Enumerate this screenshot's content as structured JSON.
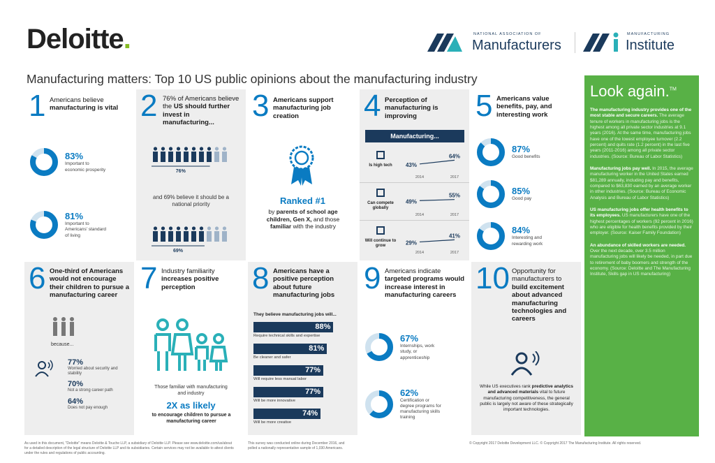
{
  "header": {
    "logo": "Deloitte",
    "logo_dot": ".",
    "partners": [
      {
        "small": "NATIONAL ASSOCIATION OF",
        "big": "Manufacturers"
      },
      {
        "small": "MANUFACTURING",
        "big": "Institute"
      }
    ]
  },
  "title": "Manufacturing matters: Top 10 US public opinions about the manufacturing industry",
  "panels": [
    {
      "number": 1,
      "heading": [
        {
          "t": "Americans believe "
        },
        {
          "t": "manufacturing is vital",
          "b": true
        }
      ],
      "items": [
        {
          "value": 83,
          "label": "83%",
          "text": "Important to economic prosperity"
        },
        {
          "value": 81,
          "label": "81%",
          "text": "Important to Americans' standard of living"
        }
      ]
    },
    {
      "number": 2,
      "heading": [
        {
          "t": "76% of Americans believe the "
        },
        {
          "t": "US should further invest in manufacturing...",
          "b": true
        }
      ],
      "stats": [
        {
          "value": 76,
          "label": "76%"
        },
        {
          "value": 69,
          "label": "69%"
        }
      ],
      "middle": "and 69% believe it should be a national priority"
    },
    {
      "number": 3,
      "heading": [
        {
          "t": "Americans support manufacturing job creation",
          "b": true
        }
      ],
      "rank": "Ranked #1",
      "text": [
        {
          "t": "by "
        },
        {
          "t": "parents of school age children, Gen X,",
          "b": true
        },
        {
          "t": " and those "
        },
        {
          "t": "familiar",
          "b": true
        },
        {
          "t": " with the industry"
        }
      ]
    },
    {
      "number": 4,
      "heading": [
        {
          "t": "Perception of manufacturing is improving",
          "b": true
        }
      ],
      "banner": "Manufacturing...",
      "years": [
        "2014",
        "2017"
      ],
      "ylim": [
        0,
        100
      ],
      "rows": [
        {
          "label": "Is high tech",
          "values": [
            43,
            64
          ],
          "value_labels": [
            "43%",
            "64%"
          ]
        },
        {
          "label": "Can compete globally",
          "values": [
            49,
            55
          ],
          "value_labels": [
            "49%",
            "55%"
          ]
        },
        {
          "label": "Will continue to grow",
          "values": [
            29,
            41
          ],
          "value_labels": [
            "29%",
            "41%"
          ]
        }
      ]
    },
    {
      "number": 5,
      "heading": [
        {
          "t": "Americans value benefits, pay, and interesting work",
          "b": true
        }
      ],
      "items": [
        {
          "value": 87,
          "label": "87%",
          "text": "Good benefits"
        },
        {
          "value": 85,
          "label": "85%",
          "text": "Good pay"
        },
        {
          "value": 84,
          "label": "84%",
          "text": "Interesting and rewarding work"
        }
      ]
    },
    {
      "number": 6,
      "heading": [
        {
          "t": "One-third of Americans would not encourage their children to pursue a manufacturing career",
          "b": true
        }
      ],
      "because": "because...",
      "items": [
        {
          "label": "77%",
          "text": "Worried about security and stability"
        },
        {
          "label": "70%",
          "text": "Not a strong career path"
        },
        {
          "label": "64%",
          "text": "Does not pay enough"
        }
      ]
    },
    {
      "number": 7,
      "heading": [
        {
          "t": "Industry familiarity "
        },
        {
          "t": "increases positive perception",
          "b": true
        }
      ],
      "text": "Those familiar with manufacturing and industry",
      "highlight": "2X as likely",
      "tail": "to encourage children to pursue a manufacturing career"
    },
    {
      "number": 8,
      "heading": [
        {
          "t": "Americans have a positive perception about future manufacturing jobs",
          "b": true
        }
      ],
      "subheading": "They believe manufacturing jobs will...",
      "xlim": [
        0,
        100
      ],
      "bars": [
        {
          "value": 88,
          "label": "88%",
          "text": "Require technical skills and expertise"
        },
        {
          "value": 81,
          "label": "81%",
          "text": "Be cleaner and safer"
        },
        {
          "value": 77,
          "label": "77%",
          "text": "Will require less manual labor"
        },
        {
          "value": 77,
          "label": "77%",
          "text": "Will be more innovative"
        },
        {
          "value": 74,
          "label": "74%",
          "text": "Will be more creative"
        }
      ]
    },
    {
      "number": 9,
      "heading": [
        {
          "t": "Americans indicate "
        },
        {
          "t": "targeted programs would increase interest in manufacturing careers",
          "b": true
        }
      ],
      "items": [
        {
          "value": 67,
          "label": "67%",
          "text": "Internships, work study, or apprenticeship"
        },
        {
          "value": 62,
          "label": "62%",
          "text": "Certification or degree programs for manufacturing skills training"
        }
      ]
    },
    {
      "number": 10,
      "heading": [
        {
          "t": "Opportunity for manufacturers to "
        },
        {
          "t": "build excitement about advanced manufacturing technologies and careers",
          "b": true
        }
      ],
      "text": [
        {
          "t": "While US executives rank "
        },
        {
          "t": "predictive analytics and advanced materials",
          "b": true
        },
        {
          "t": " vital to future manufacturing competitiveness, the general public is largely not aware of these strategically important technologies."
        }
      ]
    }
  ],
  "sidebar": {
    "heading": "Look again.",
    "tm": "TM",
    "paragraphs": [
      [
        {
          "t": "The manufacturing industry provides one of the most stable and secure careers.",
          "b": true
        },
        {
          "t": " The average tenure of workers in manufacturing jobs is the highest among all private sector industries at 9.1 years (2016). At the same time, manufacturing jobs have one of the lowest employee turnover (2.2 percent) and quits rate (1.2 percent) in the last five years (2011-2016) among all private sector industries. (Source: Bureau of Labor Statistics)"
        }
      ],
      [
        {
          "t": "Manufacturing jobs pay well.",
          "b": true
        },
        {
          "t": " In 2015, the average manufacturing worker in the United States earned $81,289 annually, including pay and benefits, compared to $63,830 earned by an average worker in other industries. (Source: Bureau of Economic Analysis and Bureau of Labor Statistics)"
        }
      ],
      [
        {
          "t": "US manufacturing jobs offer health benefits to its employees.",
          "b": true
        },
        {
          "t": " US manufacturers have one of the highest percentages of workers (92 percent in 2016) who are eligible for health benefits provided by their employer. (Source: Kaiser Family Foundation)"
        }
      ],
      [
        {
          "t": "An abundance of skilled workers are needed.",
          "b": true
        },
        {
          "t": " Over the next decade, over 3.5 million manufacturing jobs will likely be needed, in part due to retirement of baby boomers and strength of the economy. (Source: Deloitte and The Manufacturing Institute, Skills gap in US manufacturing)"
        }
      ]
    ]
  },
  "footer": [
    "As used in this document, \"Deloitte\" means Deloitte & Touche LLP, a subsidiary of Deloitte LLP. Please see www.deloitte.com/us/about for a detailed description of the legal structure of Deloitte LLP and its subsidiaries. Certain services may not be available to attest clients under the rules and regulations of public accounting.",
    "This survey was conducted online during December 2016, and polled a nationally representative sample of 1,030 Americans.",
    "© Copyright 2017 Deloitte Development LLC. © Copyright 2017 The Manufacturing Institute. All rights reserved."
  ]
}
